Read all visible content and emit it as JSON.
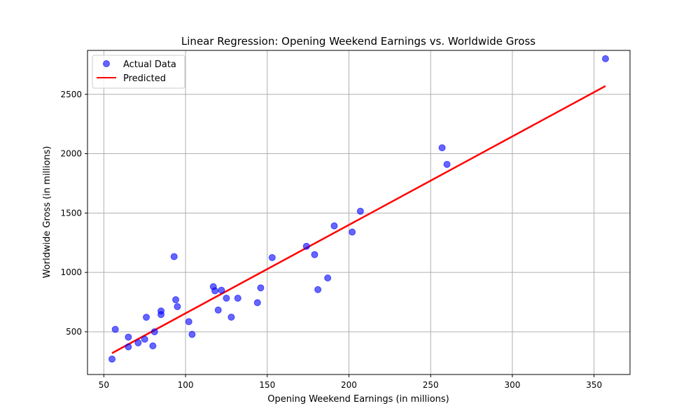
{
  "chart_data": {
    "type": "scatter",
    "title": "Linear Regression: Opening Weekend Earnings vs. Worldwide Gross",
    "xlabel": "Opening Weekend Earnings (in millions)",
    "ylabel": "Worldwide Gross (in millions)",
    "xlim": [
      40,
      372
    ],
    "ylim": [
      140,
      2870
    ],
    "xticks": [
      50,
      100,
      150,
      200,
      250,
      300,
      350
    ],
    "yticks": [
      500,
      1000,
      1500,
      2000,
      2500
    ],
    "grid": true,
    "legend_position": "top-left",
    "series": [
      {
        "name": "Actual Data",
        "kind": "scatter",
        "color": "#0000ff",
        "points": [
          [
            55,
            270
          ],
          [
            57,
            520
          ],
          [
            65,
            455
          ],
          [
            65,
            373
          ],
          [
            71,
            407
          ],
          [
            75,
            437
          ],
          [
            76,
            622
          ],
          [
            80,
            381
          ],
          [
            81,
            500
          ],
          [
            85,
            675
          ],
          [
            85,
            645
          ],
          [
            93,
            1133
          ],
          [
            94,
            770
          ],
          [
            95,
            712
          ],
          [
            102,
            585
          ],
          [
            104,
            478
          ],
          [
            117,
            880
          ],
          [
            118,
            845
          ],
          [
            120,
            683
          ],
          [
            122,
            850
          ],
          [
            125,
            783
          ],
          [
            128,
            623
          ],
          [
            132,
            783
          ],
          [
            144,
            745
          ],
          [
            146,
            870
          ],
          [
            153,
            1125
          ],
          [
            174,
            1220
          ],
          [
            179,
            1150
          ],
          [
            181,
            855
          ],
          [
            187,
            953
          ],
          [
            191,
            1392
          ],
          [
            202,
            1340
          ],
          [
            207,
            1515
          ],
          [
            257,
            2050
          ],
          [
            260,
            1910
          ],
          [
            357,
            2800
          ]
        ]
      },
      {
        "name": "Predicted",
        "kind": "line",
        "color": "#ff0000",
        "points": [
          [
            55,
            320
          ],
          [
            357,
            2570
          ]
        ]
      }
    ]
  }
}
